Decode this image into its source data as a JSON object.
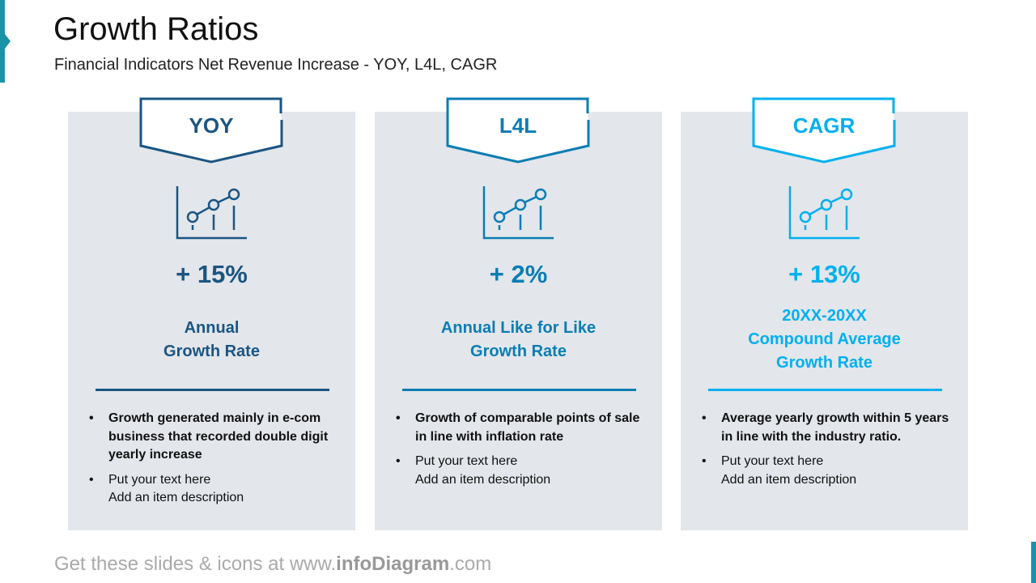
{
  "header": {
    "title": "Growth Ratios",
    "subtitle": "Financial Indicators Net Revenue Increase - YOY, L4L, CAGR"
  },
  "cards": [
    {
      "tag": "YOY",
      "color": "#1b5582",
      "icon": "growth-chart-icon",
      "value": "+ 15%",
      "label_lines": [
        "Annual",
        "Growth Rate"
      ],
      "bullets": [
        {
          "text": "Growth generated mainly in e-com business that recorded double digit yearly increase",
          "bold": true
        },
        {
          "line1": "Put your text here",
          "line2": "Add an item description"
        }
      ]
    },
    {
      "tag": "L4L",
      "color": "#0b7db3",
      "icon": "growth-chart-icon",
      "value": "+ 2%",
      "label_lines": [
        "Annual Like for Like",
        "Growth Rate"
      ],
      "bullets": [
        {
          "text": "Growth of comparable points of sale in line with inflation rate",
          "bold": true
        },
        {
          "line1": "Put your text here",
          "line2": "Add an item description"
        }
      ]
    },
    {
      "tag": "CAGR",
      "color": "#00b0f0",
      "icon": "growth-chart-icon",
      "value": "+ 13%",
      "label_lines": [
        "20XX-20XX",
        "Compound Average",
        "Growth Rate"
      ],
      "bullets": [
        {
          "text": "Average yearly growth within 5 years in line with the industry ratio.",
          "bold": true
        },
        {
          "line1": "Put your text here",
          "line2": "Add an item description"
        }
      ]
    }
  ],
  "footer": {
    "prefix": "Get these slides & icons at www.",
    "brand": "infoDiagram",
    "suffix": ".com"
  }
}
